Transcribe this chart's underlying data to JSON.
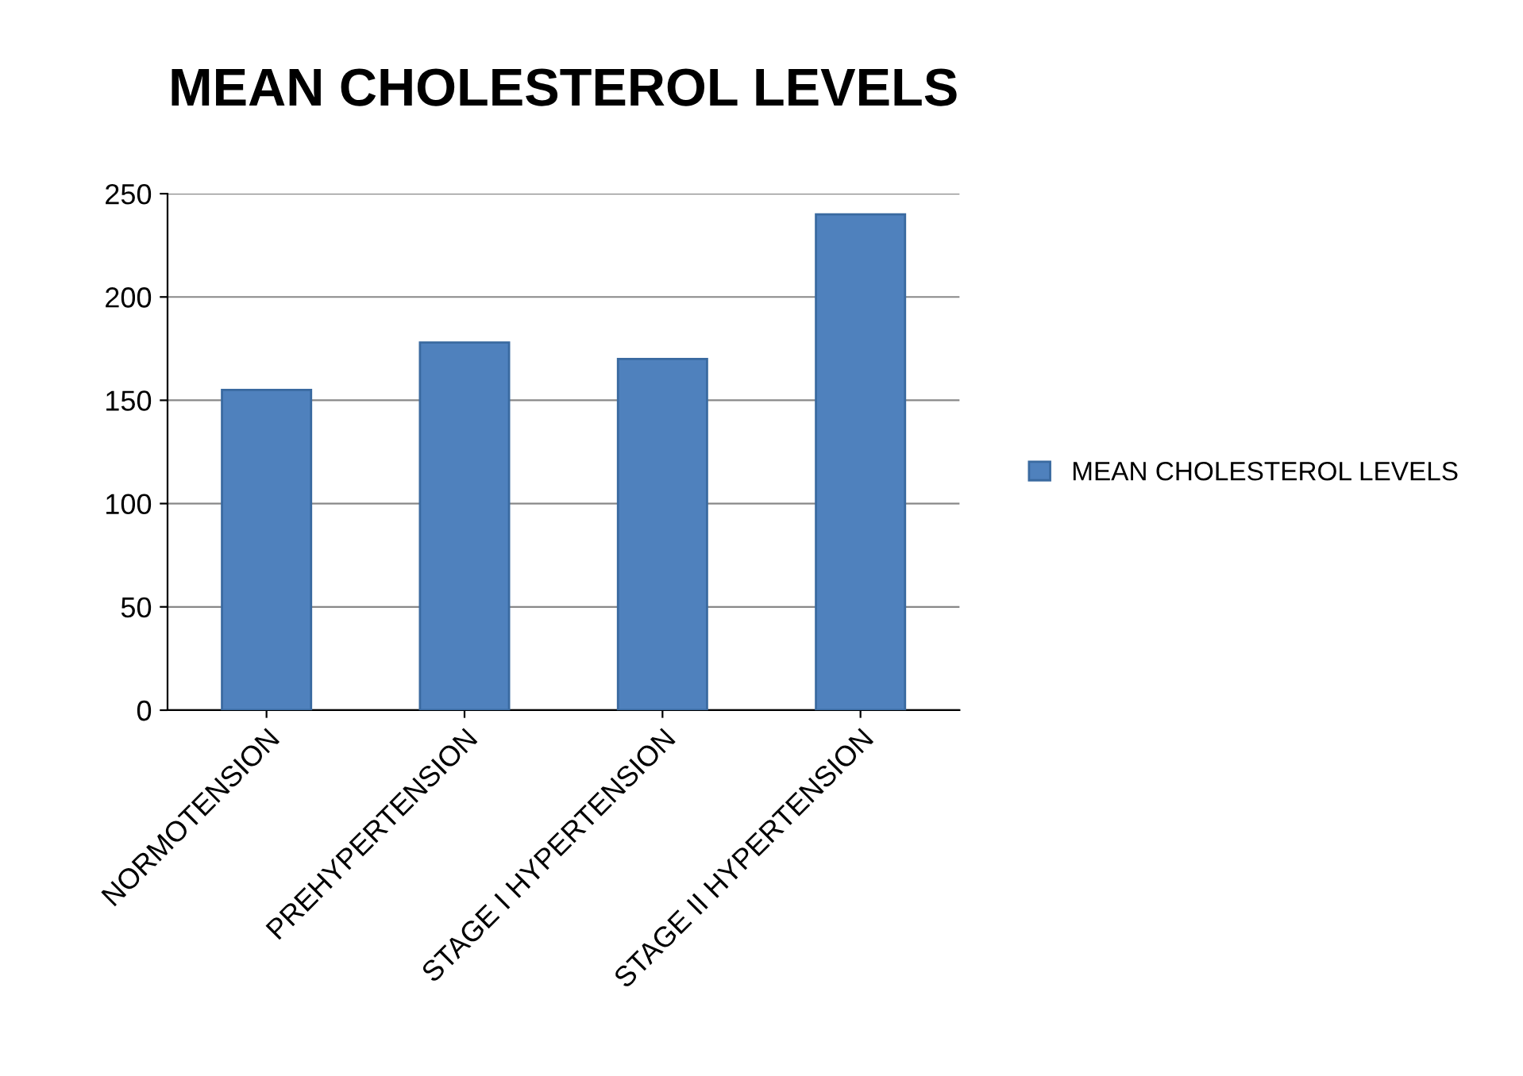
{
  "chart_data": {
    "type": "bar",
    "title": "MEAN CHOLESTEROL LEVELS",
    "categories": [
      "NORMOTENSION",
      "PREHYPERTENSION",
      "STAGE I HYPERTENSION",
      "STAGE II HYPERTENSION"
    ],
    "series": [
      {
        "name": "MEAN CHOLESTEROL LEVELS",
        "color": "#4f81bd",
        "values": [
          155,
          178,
          170,
          240
        ]
      }
    ],
    "ylim": [
      0,
      250
    ],
    "yticks": [
      0,
      50,
      100,
      150,
      200,
      250
    ],
    "grid": "y",
    "legend": "right"
  }
}
